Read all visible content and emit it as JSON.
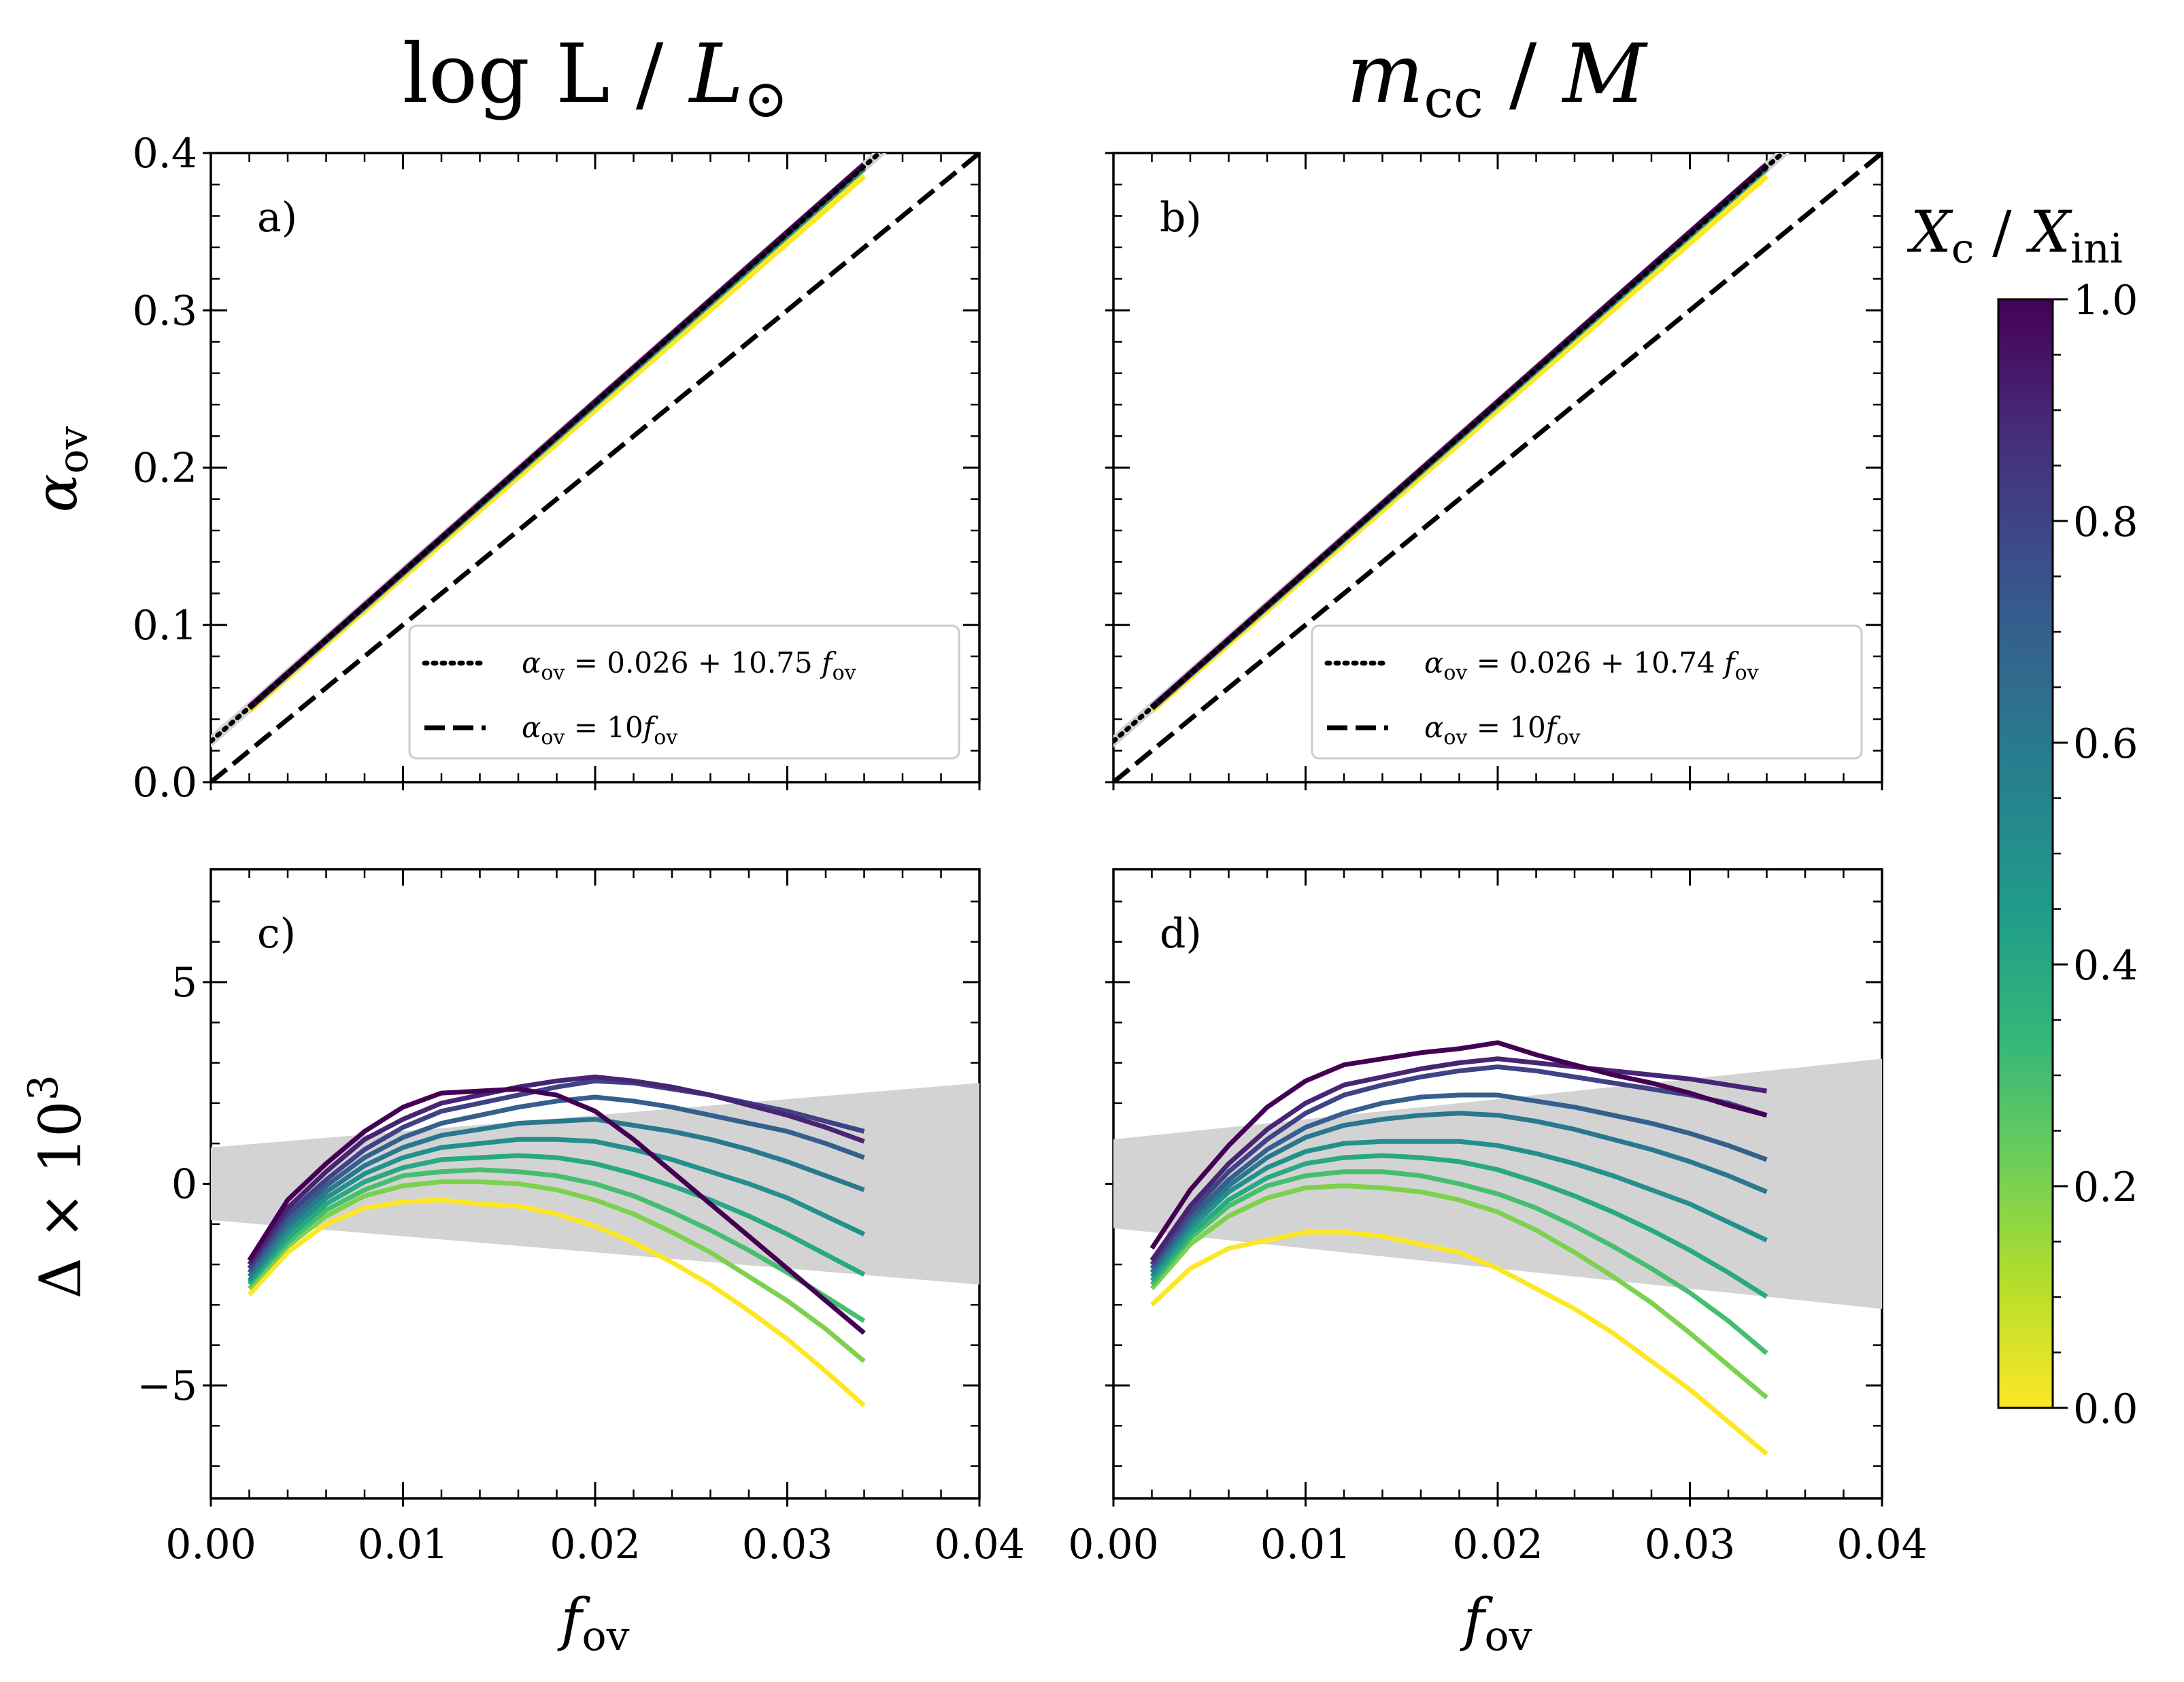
{
  "column_titles": {
    "left": {
      "main": "log L",
      "sep": " / ",
      "tail": "L",
      "sym": "⊙"
    },
    "right": {
      "main": "m",
      "sub": "cc",
      "sep": " / ",
      "tail": "M"
    }
  },
  "colorbar": {
    "title_main": "X",
    "title_sub1": "c",
    "title_sep": " / ",
    "title_main2": "X",
    "title_sub2": "ini",
    "ticks": [
      "0.0",
      "0.2",
      "0.4",
      "0.6",
      "0.8",
      "1.0"
    ],
    "colors": [
      "#fde725",
      "#b5de2b",
      "#6ece58",
      "#35b779",
      "#1f9e89",
      "#26828e",
      "#31688e",
      "#3e4989",
      "#482878",
      "#440154"
    ]
  },
  "chart_data": [
    {
      "panel": "a)",
      "type": "line",
      "xlabel_main": "f",
      "xlabel_sub": "ov",
      "ylabel_main": "α",
      "ylabel_sub": "ov",
      "xlim": [
        0.0,
        0.04
      ],
      "ylim": [
        0.0,
        0.4
      ],
      "xticks": [
        "0.00",
        "0.01",
        "0.02",
        "0.03",
        "0.04"
      ],
      "yticks": [
        "0.0",
        "0.1",
        "0.2",
        "0.3",
        "0.4"
      ],
      "fit": {
        "intercept": 0.026,
        "slope": 10.75
      },
      "reference": {
        "slope": 10
      },
      "legend": [
        {
          "style": "dotted",
          "lhs": "α",
          "lhs_sub": "ov",
          "rhs": " = 0.026 + 10.75 ",
          "var": "f",
          "var_sub": "ov"
        },
        {
          "style": "dashed",
          "lhs": "α",
          "lhs_sub": "ov",
          "rhs": " = 10",
          "var": "f",
          "var_sub": "ov"
        }
      ],
      "series_x": [
        0.002,
        0.034
      ],
      "series": [
        {
          "xc": 0.0,
          "y": [
            0.0455,
            0.3855
          ]
        },
        {
          "xc": 0.5,
          "y": [
            0.047,
            0.3905
          ]
        },
        {
          "xc": 1.0,
          "y": [
            0.0475,
            0.3925
          ]
        }
      ]
    },
    {
      "panel": "b)",
      "type": "line",
      "xlim": [
        0.0,
        0.04
      ],
      "ylim": [
        0.0,
        0.4
      ],
      "fit": {
        "intercept": 0.026,
        "slope": 10.74
      },
      "reference": {
        "slope": 10
      },
      "legend": [
        {
          "style": "dotted",
          "lhs": "α",
          "lhs_sub": "ov",
          "rhs": " = 0.026 + 10.74 ",
          "var": "f",
          "var_sub": "ov"
        },
        {
          "style": "dashed",
          "lhs": "α",
          "lhs_sub": "ov",
          "rhs": " = 10",
          "var": "f",
          "var_sub": "ov"
        }
      ],
      "series_x": [
        0.002,
        0.034
      ],
      "series": [
        {
          "xc": 0.0,
          "y": [
            0.0455,
            0.3855
          ]
        },
        {
          "xc": 0.5,
          "y": [
            0.047,
            0.3905
          ]
        },
        {
          "xc": 1.0,
          "y": [
            0.0475,
            0.3925
          ]
        }
      ]
    },
    {
      "panel": "c)",
      "type": "line",
      "xlabel_main": "f",
      "xlabel_sub": "ov",
      "ylabel_main": "Δ × 10",
      "ylabel_sup": "3",
      "xlim": [
        0.0,
        0.04
      ],
      "ylim": [
        -7.8,
        7.8
      ],
      "xticks": [
        "0.00",
        "0.01",
        "0.02",
        "0.03",
        "0.04"
      ],
      "yticks": [
        {
          "v": 5,
          "label": "5"
        },
        {
          "v": 0,
          "label": "0"
        },
        {
          "v": -5,
          "label": "−5"
        }
      ],
      "band": {
        "x": [
          0.0,
          0.04
        ],
        "upper": [
          0.9,
          2.5
        ],
        "lower": [
          -0.9,
          -2.5
        ]
      },
      "x": [
        0.002,
        0.004,
        0.006,
        0.008,
        0.01,
        0.012,
        0.014,
        0.016,
        0.018,
        0.02,
        0.022,
        0.024,
        0.026,
        0.028,
        0.03,
        0.032,
        0.034
      ],
      "series": [
        {
          "xc": 1.0,
          "values": [
            -1.9,
            -0.4,
            0.5,
            1.3,
            1.9,
            2.25,
            2.3,
            2.35,
            2.2,
            1.8,
            1.1,
            0.3,
            -0.5,
            -1.3,
            -2.1,
            -2.9,
            -3.7
          ]
        },
        {
          "xc": 0.9,
          "values": [
            -2.0,
            -0.6,
            0.3,
            1.1,
            1.6,
            2.0,
            2.2,
            2.4,
            2.55,
            2.65,
            2.55,
            2.4,
            2.2,
            1.95,
            1.7,
            1.4,
            1.05
          ]
        },
        {
          "xc": 0.8,
          "values": [
            -2.1,
            -0.75,
            0.1,
            0.85,
            1.4,
            1.8,
            2.0,
            2.2,
            2.4,
            2.55,
            2.5,
            2.35,
            2.2,
            2.0,
            1.8,
            1.55,
            1.3
          ]
        },
        {
          "xc": 0.7,
          "values": [
            -2.2,
            -0.9,
            -0.05,
            0.65,
            1.15,
            1.5,
            1.7,
            1.9,
            2.05,
            2.15,
            2.05,
            1.9,
            1.7,
            1.5,
            1.3,
            1.0,
            0.65
          ]
        },
        {
          "xc": 0.6,
          "values": [
            -2.3,
            -1.05,
            -0.2,
            0.45,
            0.9,
            1.2,
            1.35,
            1.5,
            1.55,
            1.6,
            1.45,
            1.3,
            1.1,
            0.85,
            0.55,
            0.2,
            -0.15
          ]
        },
        {
          "xc": 0.5,
          "values": [
            -2.4,
            -1.2,
            -0.35,
            0.25,
            0.65,
            0.9,
            1.0,
            1.1,
            1.1,
            1.05,
            0.85,
            0.6,
            0.3,
            0.0,
            -0.35,
            -0.8,
            -1.25
          ]
        },
        {
          "xc": 0.4,
          "values": [
            -2.45,
            -1.35,
            -0.5,
            0.05,
            0.4,
            0.6,
            0.65,
            0.7,
            0.65,
            0.5,
            0.25,
            -0.05,
            -0.4,
            -0.8,
            -1.25,
            -1.75,
            -2.25
          ]
        },
        {
          "xc": 0.3,
          "values": [
            -2.5,
            -1.45,
            -0.65,
            -0.15,
            0.2,
            0.3,
            0.35,
            0.3,
            0.2,
            0.0,
            -0.3,
            -0.7,
            -1.15,
            -1.65,
            -2.2,
            -2.8,
            -3.4
          ]
        },
        {
          "xc": 0.2,
          "values": [
            -2.6,
            -1.55,
            -0.8,
            -0.3,
            -0.05,
            0.05,
            0.05,
            0.0,
            -0.15,
            -0.4,
            -0.75,
            -1.2,
            -1.7,
            -2.3,
            -2.9,
            -3.6,
            -4.4
          ]
        },
        {
          "xc": 0.0,
          "values": [
            -2.75,
            -1.7,
            -1.0,
            -0.6,
            -0.45,
            -0.4,
            -0.5,
            -0.55,
            -0.75,
            -1.05,
            -1.45,
            -1.95,
            -2.5,
            -3.15,
            -3.85,
            -4.65,
            -5.5
          ]
        }
      ]
    },
    {
      "panel": "d)",
      "type": "line",
      "xlabel_main": "f",
      "xlabel_sub": "ov",
      "xlim": [
        0.0,
        0.04
      ],
      "ylim": [
        -7.8,
        7.8
      ],
      "xticks": [
        "0.00",
        "0.01",
        "0.02",
        "0.03",
        "0.04"
      ],
      "band": {
        "x": [
          0.0,
          0.04
        ],
        "upper": [
          1.1,
          3.1
        ],
        "lower": [
          -1.1,
          -3.1
        ]
      },
      "x": [
        0.002,
        0.004,
        0.006,
        0.008,
        0.01,
        0.012,
        0.014,
        0.016,
        0.018,
        0.02,
        0.022,
        0.024,
        0.026,
        0.028,
        0.03,
        0.032,
        0.034
      ],
      "series": [
        {
          "xc": 1.0,
          "values": [
            -1.6,
            -0.15,
            0.95,
            1.9,
            2.55,
            2.95,
            3.1,
            3.25,
            3.35,
            3.5,
            3.2,
            2.95,
            2.7,
            2.5,
            2.25,
            1.95,
            1.7
          ]
        },
        {
          "xc": 0.9,
          "values": [
            -1.9,
            -0.55,
            0.5,
            1.35,
            2.0,
            2.45,
            2.65,
            2.85,
            3.0,
            3.1,
            3.0,
            2.9,
            2.8,
            2.7,
            2.6,
            2.45,
            2.3
          ]
        },
        {
          "xc": 0.8,
          "values": [
            -2.0,
            -0.7,
            0.3,
            1.1,
            1.75,
            2.2,
            2.45,
            2.65,
            2.8,
            2.9,
            2.8,
            2.65,
            2.5,
            2.35,
            2.2,
            2.0,
            1.7
          ]
        },
        {
          "xc": 0.7,
          "values": [
            -2.1,
            -0.85,
            0.1,
            0.85,
            1.4,
            1.75,
            2.0,
            2.15,
            2.2,
            2.2,
            2.05,
            1.9,
            1.7,
            1.5,
            1.25,
            0.95,
            0.6
          ]
        },
        {
          "xc": 0.6,
          "values": [
            -2.2,
            -0.95,
            -0.05,
            0.65,
            1.15,
            1.45,
            1.6,
            1.7,
            1.75,
            1.7,
            1.55,
            1.35,
            1.1,
            0.85,
            0.55,
            0.2,
            -0.2
          ]
        },
        {
          "xc": 0.5,
          "values": [
            -2.3,
            -1.1,
            -0.2,
            0.4,
            0.8,
            1.0,
            1.05,
            1.05,
            1.05,
            0.95,
            0.75,
            0.5,
            0.2,
            -0.15,
            -0.5,
            -0.95,
            -1.4
          ]
        },
        {
          "xc": 0.4,
          "values": [
            -2.4,
            -1.25,
            -0.4,
            0.15,
            0.5,
            0.65,
            0.7,
            0.65,
            0.55,
            0.35,
            0.05,
            -0.3,
            -0.7,
            -1.15,
            -1.65,
            -2.2,
            -2.8
          ]
        },
        {
          "xc": 0.3,
          "values": [
            -2.5,
            -1.35,
            -0.55,
            -0.05,
            0.2,
            0.3,
            0.3,
            0.2,
            0.0,
            -0.25,
            -0.6,
            -1.05,
            -1.55,
            -2.1,
            -2.7,
            -3.4,
            -4.2
          ]
        },
        {
          "xc": 0.2,
          "values": [
            -2.6,
            -1.5,
            -0.8,
            -0.35,
            -0.1,
            -0.05,
            -0.1,
            -0.2,
            -0.4,
            -0.7,
            -1.15,
            -1.7,
            -2.3,
            -2.95,
            -3.7,
            -4.5,
            -5.3
          ]
        },
        {
          "xc": 0.0,
          "values": [
            -3.0,
            -2.1,
            -1.6,
            -1.4,
            -1.2,
            -1.2,
            -1.3,
            -1.5,
            -1.7,
            -2.1,
            -2.6,
            -3.1,
            -3.7,
            -4.4,
            -5.1,
            -5.9,
            -6.7
          ]
        }
      ]
    }
  ]
}
